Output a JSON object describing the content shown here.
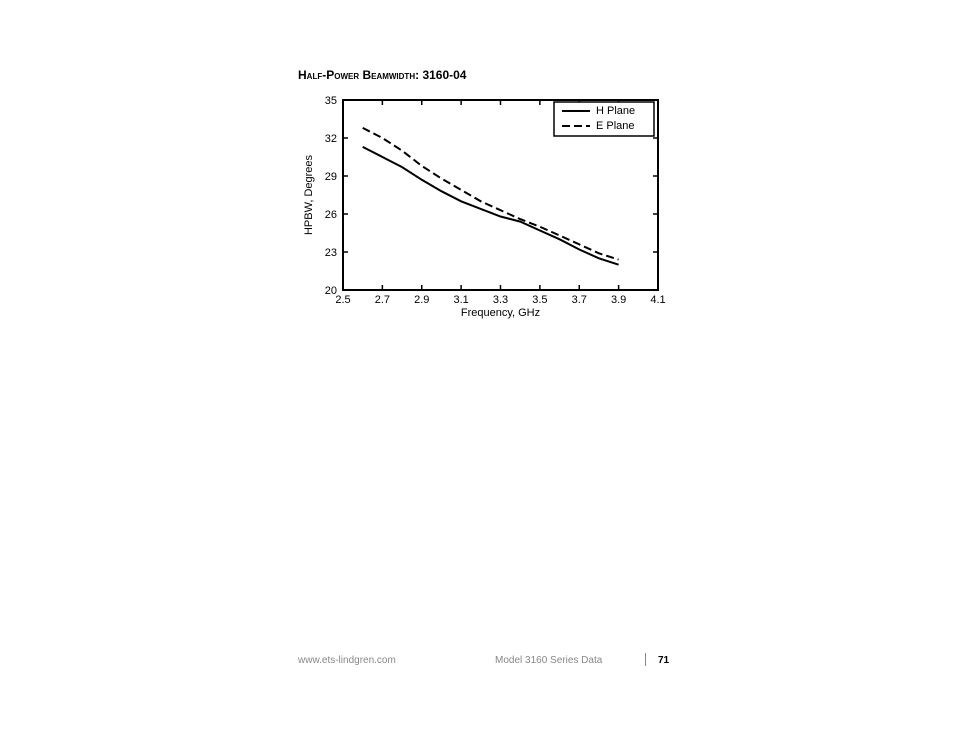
{
  "heading": {
    "prefix_sc": "Half-Power Beamwidth: ",
    "model": "3160-04"
  },
  "footer": {
    "url": "www.ets-lindgren.com",
    "mid": "Model 3160 Series Data",
    "page": "71"
  },
  "chart": {
    "type": "line",
    "background_color": "#ffffff",
    "frame_color": "#000000",
    "frame_width": 2,
    "x": {
      "label": "Frequency, GHz",
      "min": 2.5,
      "max": 4.1,
      "ticks": [
        2.5,
        2.7,
        2.9,
        3.1,
        3.3,
        3.5,
        3.7,
        3.9,
        4.1
      ]
    },
    "y": {
      "label": "HPBW, Degrees",
      "min": 20,
      "max": 35,
      "ticks": [
        20,
        23,
        26,
        29,
        32,
        35
      ]
    },
    "legend": {
      "items": [
        {
          "label": "H Plane",
          "style": "solid"
        },
        {
          "label": "E Plane",
          "style": "dashed"
        }
      ],
      "position": "top-right"
    },
    "series": [
      {
        "name": "H Plane",
        "style": "solid",
        "color": "#000000",
        "line_width": 2,
        "x": [
          2.6,
          2.7,
          2.8,
          2.9,
          3.0,
          3.1,
          3.2,
          3.3,
          3.4,
          3.5,
          3.6,
          3.7,
          3.8,
          3.9
        ],
        "y": [
          31.3,
          30.5,
          29.7,
          28.7,
          27.8,
          27.0,
          26.4,
          25.8,
          25.4,
          24.7,
          24.0,
          23.2,
          22.5,
          22.0
        ]
      },
      {
        "name": "E Plane",
        "style": "dashed",
        "color": "#000000",
        "line_width": 2,
        "x": [
          2.6,
          2.7,
          2.8,
          2.9,
          3.0,
          3.1,
          3.2,
          3.3,
          3.4,
          3.5,
          3.6,
          3.7,
          3.8,
          3.9
        ],
        "y": [
          32.8,
          32.0,
          31.0,
          29.8,
          28.8,
          27.9,
          27.0,
          26.3,
          25.6,
          25.0,
          24.3,
          23.6,
          22.9,
          22.4
        ]
      }
    ]
  }
}
